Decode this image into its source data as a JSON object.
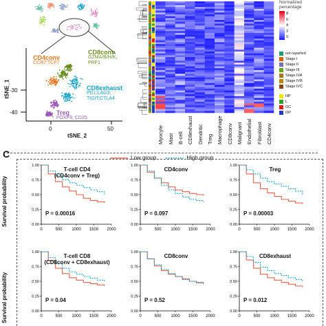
{
  "tsne": {
    "x_axis_label": "tSNE_2",
    "y_axis_label": "tSNE_1",
    "x_ticks": [
      "0",
      "50"
    ],
    "y_ticks": [
      "-30",
      "-40"
    ],
    "clusters": [
      {
        "name": "CD4conv",
        "markers": "CCR7;TCF7",
        "color": "#e87722"
      },
      {
        "name": "CD8conv",
        "markers": "GZMA/B/H/K;\nPRF1",
        "color": "#6b8e23"
      },
      {
        "name": "CD8exhaust",
        "markers": "PD1;LAG3;\nTIGIT;CTLA4",
        "color": "#17a2c8"
      },
      {
        "name": "Treg",
        "markers": "FOXP3; CD25",
        "color": "#9b59b6"
      }
    ]
  },
  "heatmap": {
    "legend_title": "Normalized\npercentage",
    "scale_ticks": [
      "8",
      "6",
      "4",
      "2",
      "0"
    ],
    "categories": [
      "Myocyte",
      "Mast",
      "B-cell",
      "CD8exhaust",
      "Dendritic",
      "Treg",
      "Macrophage",
      "CD8conv",
      "Malignant",
      "Endothelial",
      "Fibroblast",
      "CD4conv"
    ],
    "stage_legend": [
      {
        "label": "not reported",
        "color": "#1b9e77"
      },
      {
        "label": "Stage I",
        "color": "#d95f02"
      },
      {
        "label": "Stage II",
        "color": "#7570b3"
      },
      {
        "label": "Stage III",
        "color": "#66a61e"
      },
      {
        "label": "Stage IVA",
        "color": "#a6761d"
      },
      {
        "label": "Stage IVB",
        "color": "#b8860b"
      },
      {
        "label": "Stage IVC",
        "color": "#8b4513"
      }
    ],
    "site_legend": [
      {
        "label": "HP",
        "color": "#f5e400"
      },
      {
        "label": "L",
        "color": "#2ca02c"
      },
      {
        "label": "OC",
        "color": "#e31a1c"
      },
      {
        "label": "OP",
        "color": "#1f3fbf"
      }
    ]
  },
  "panel_c": {
    "letter": "C",
    "legend": {
      "low": "Low group",
      "high": "High group",
      "low_color": "#e8604c",
      "high_color": "#17a2c8"
    },
    "y_label": "Survival probability",
    "x_ticks": [
      "0",
      "500",
      "1000",
      "1500",
      "2000"
    ],
    "y_ticks": [
      "0.00",
      "0.25",
      "0.50",
      "0.75",
      "1.00"
    ],
    "panels": [
      {
        "title": "T-cell CD4\n(CD4conv + Treg)",
        "pvalue": "P = 0.00016"
      },
      {
        "title": "CD4conv",
        "pvalue": "P = 0.097"
      },
      {
        "title": "Treg",
        "pvalue": "P = 0.00003"
      },
      {
        "title": "T-cell CD8\n(CD8conv + CD8exhaust)",
        "pvalue": "P = 0.04"
      },
      {
        "title": "CD8conv",
        "pvalue": "P = 0.52"
      },
      {
        "title": "CD8exhaust",
        "pvalue": "P = 0.012"
      }
    ]
  },
  "chart_data": [
    {
      "type": "line",
      "title": "T-cell CD4 (CD4conv + Treg)",
      "xlim": [
        0,
        2000
      ],
      "ylim": [
        0,
        1
      ],
      "series": [
        {
          "name": "Low group",
          "x": [
            0,
            200,
            400,
            600,
            800,
            1000,
            1200,
            1400,
            1600,
            1800
          ],
          "values": [
            1.0,
            0.85,
            0.72,
            0.63,
            0.56,
            0.5,
            0.44,
            0.4,
            0.38,
            0.36
          ]
        },
        {
          "name": "High group",
          "x": [
            0,
            200,
            400,
            600,
            800,
            1000,
            1200,
            1400,
            1600,
            1800
          ],
          "values": [
            1.0,
            0.9,
            0.82,
            0.75,
            0.7,
            0.66,
            0.62,
            0.58,
            0.55,
            0.5
          ]
        }
      ]
    },
    {
      "type": "line",
      "title": "CD4conv",
      "xlim": [
        0,
        2000
      ],
      "ylim": [
        0,
        1
      ],
      "series": [
        {
          "name": "Low group",
          "x": [
            0,
            200,
            400,
            600,
            800,
            1000,
            1200,
            1400,
            1600,
            1800
          ],
          "values": [
            1.0,
            0.88,
            0.78,
            0.7,
            0.63,
            0.58,
            0.55,
            0.52,
            0.5,
            0.48
          ]
        },
        {
          "name": "High group",
          "x": [
            0,
            200,
            400,
            600,
            800,
            1000,
            1200,
            1400,
            1600,
            1800
          ],
          "values": [
            1.0,
            0.9,
            0.78,
            0.66,
            0.58,
            0.52,
            0.46,
            0.42,
            0.4,
            0.38
          ]
        }
      ]
    },
    {
      "type": "line",
      "title": "Treg",
      "xlim": [
        0,
        2000
      ],
      "ylim": [
        0,
        1
      ],
      "series": [
        {
          "name": "Low group",
          "x": [
            0,
            200,
            400,
            600,
            800,
            1000,
            1200,
            1400,
            1600,
            1800
          ],
          "values": [
            1.0,
            0.85,
            0.7,
            0.6,
            0.53,
            0.47,
            0.42,
            0.39,
            0.36,
            0.34
          ]
        },
        {
          "name": "High group",
          "x": [
            0,
            200,
            400,
            600,
            800,
            1000,
            1200,
            1400,
            1600,
            1800
          ],
          "values": [
            1.0,
            0.92,
            0.85,
            0.78,
            0.72,
            0.68,
            0.64,
            0.6,
            0.56,
            0.5
          ]
        }
      ]
    },
    {
      "type": "line",
      "title": "T-cell CD8 (CD8conv + CD8exhaust)",
      "xlim": [
        0,
        2000
      ],
      "ylim": [
        0,
        1
      ],
      "series": [
        {
          "name": "Low group",
          "x": [
            0,
            200,
            400,
            600,
            800,
            1000,
            1200,
            1400,
            1600,
            1800
          ],
          "values": [
            1.0,
            0.85,
            0.72,
            0.63,
            0.56,
            0.52,
            0.48,
            0.46,
            0.44,
            0.42
          ]
        },
        {
          "name": "High group",
          "x": [
            0,
            200,
            400,
            600,
            800,
            1000,
            1200,
            1400,
            1600,
            1800
          ],
          "values": [
            1.0,
            0.9,
            0.8,
            0.72,
            0.66,
            0.62,
            0.58,
            0.55,
            0.52,
            0.5
          ]
        }
      ]
    },
    {
      "type": "line",
      "title": "CD8conv",
      "xlim": [
        0,
        2000
      ],
      "ylim": [
        0,
        1
      ],
      "series": [
        {
          "name": "Low group",
          "x": [
            0,
            200,
            400,
            600,
            800,
            1000,
            1200,
            1400,
            1600,
            1800
          ],
          "values": [
            1.0,
            0.88,
            0.76,
            0.68,
            0.62,
            0.58,
            0.54,
            0.5,
            0.48,
            0.46
          ]
        },
        {
          "name": "High group",
          "x": [
            0,
            200,
            400,
            600,
            800,
            1000,
            1200,
            1400,
            1600,
            1800
          ],
          "values": [
            1.0,
            0.88,
            0.78,
            0.7,
            0.63,
            0.58,
            0.53,
            0.5,
            0.47,
            0.44
          ]
        }
      ]
    },
    {
      "type": "line",
      "title": "CD8exhaust",
      "xlim": [
        0,
        2000
      ],
      "ylim": [
        0,
        1
      ],
      "series": [
        {
          "name": "Low group",
          "x": [
            0,
            200,
            400,
            600,
            800,
            1000,
            1200,
            1400,
            1600,
            1800
          ],
          "values": [
            1.0,
            0.86,
            0.72,
            0.62,
            0.56,
            0.52,
            0.48,
            0.45,
            0.42,
            0.4
          ]
        },
        {
          "name": "High group",
          "x": [
            0,
            200,
            400,
            600,
            800,
            1000,
            1200,
            1400,
            1600,
            1800
          ],
          "values": [
            1.0,
            0.92,
            0.82,
            0.74,
            0.68,
            0.63,
            0.6,
            0.56,
            0.53,
            0.5
          ]
        }
      ]
    }
  ]
}
